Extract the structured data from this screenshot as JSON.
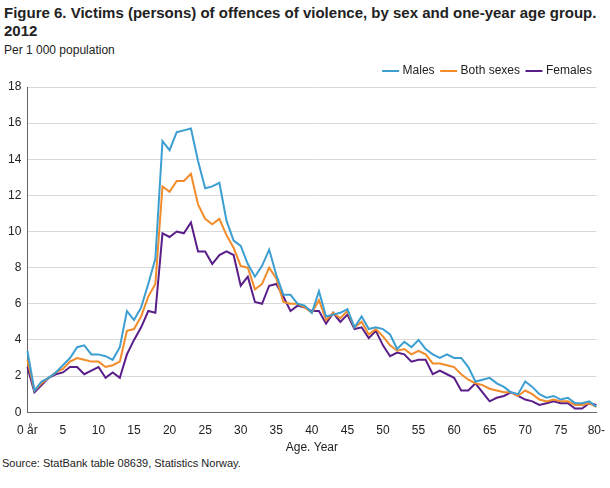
{
  "chart_data": {
    "type": "line",
    "title": "Figure 6. Victims (persons) of offences of violence, by sex and one-year age group. 2012",
    "subtitle": "Per 1 000 population",
    "x_label": "Age. Year",
    "source": "Source: StatBank table 08639, Statistics Norway.",
    "categories": [
      "0 år",
      null,
      null,
      null,
      null,
      "5",
      null,
      null,
      null,
      null,
      "10",
      null,
      null,
      null,
      null,
      "15",
      null,
      null,
      null,
      null,
      "20",
      null,
      null,
      null,
      null,
      "25",
      null,
      null,
      null,
      null,
      "30",
      null,
      null,
      null,
      null,
      "35",
      null,
      null,
      null,
      null,
      "40",
      null,
      null,
      null,
      null,
      "45",
      null,
      null,
      null,
      null,
      "50",
      null,
      null,
      null,
      null,
      "55",
      null,
      null,
      null,
      null,
      "60",
      null,
      null,
      null,
      null,
      "65",
      null,
      null,
      null,
      null,
      "70",
      null,
      null,
      null,
      null,
      "75",
      null,
      null,
      null,
      null,
      "80-"
    ],
    "series": [
      {
        "name": "Males",
        "color": "#3d9fd1",
        "values": [
          3.4,
          1.2,
          1.7,
          1.9,
          2.2,
          2.6,
          3.0,
          3.6,
          3.7,
          3.2,
          3.2,
          3.1,
          2.9,
          3.6,
          5.6,
          5.1,
          5.8,
          7.1,
          8.5,
          15.0,
          14.5,
          15.5,
          15.6,
          15.7,
          13.9,
          12.4,
          12.5,
          12.7,
          10.6,
          9.5,
          9.2,
          8.2,
          7.5,
          8.1,
          9.0,
          7.6,
          6.5,
          6.5,
          6.0,
          5.9,
          5.5,
          6.7,
          5.3,
          5.4,
          5.5,
          5.7,
          4.7,
          5.3,
          4.6,
          4.7,
          4.6,
          4.3,
          3.5,
          3.9,
          3.6,
          4.0,
          3.5,
          3.2,
          3.0,
          3.2,
          3.0,
          3.0,
          2.5,
          1.7,
          1.8,
          1.9,
          1.6,
          1.4,
          1.1,
          1.0,
          1.7,
          1.4,
          1.0,
          0.8,
          0.9,
          0.7,
          0.8,
          0.5,
          0.5,
          0.6,
          0.3
        ]
      },
      {
        "name": "Both sexes",
        "color": "#f28b2a",
        "values": [
          2.9,
          1.2,
          1.6,
          1.9,
          2.2,
          2.4,
          2.8,
          3.0,
          2.9,
          2.8,
          2.8,
          2.5,
          2.6,
          2.8,
          4.5,
          4.6,
          5.3,
          6.4,
          7.1,
          12.5,
          12.2,
          12.8,
          12.8,
          13.2,
          11.5,
          10.7,
          10.4,
          10.7,
          9.8,
          9.1,
          8.1,
          8.0,
          6.8,
          7.1,
          8.0,
          7.4,
          6.1,
          6.0,
          6.0,
          5.8,
          5.5,
          6.2,
          5.1,
          5.5,
          5.2,
          5.6,
          4.7,
          5.0,
          4.3,
          4.6,
          4.2,
          3.7,
          3.4,
          3.5,
          3.2,
          3.4,
          3.2,
          2.7,
          2.7,
          2.6,
          2.5,
          2.1,
          1.8,
          1.6,
          1.5,
          1.3,
          1.2,
          1.1,
          1.1,
          0.9,
          1.2,
          1.0,
          0.7,
          0.6,
          0.7,
          0.6,
          0.6,
          0.4,
          0.4,
          0.5,
          0.3
        ]
      },
      {
        "name": "Females",
        "color": "#5a1e8a",
        "values": [
          2.5,
          1.1,
          1.5,
          1.9,
          2.1,
          2.2,
          2.5,
          2.5,
          2.1,
          2.3,
          2.5,
          1.9,
          2.2,
          1.9,
          3.2,
          4.0,
          4.7,
          5.6,
          5.5,
          9.9,
          9.7,
          10.0,
          9.9,
          10.5,
          8.9,
          8.9,
          8.2,
          8.7,
          8.9,
          8.7,
          7.0,
          7.5,
          6.1,
          6.0,
          7.0,
          7.1,
          6.4,
          5.6,
          5.9,
          5.8,
          5.6,
          5.6,
          4.9,
          5.5,
          5.0,
          5.4,
          4.6,
          4.7,
          4.1,
          4.5,
          3.7,
          3.1,
          3.3,
          3.2,
          2.8,
          2.9,
          2.9,
          2.1,
          2.3,
          2.1,
          1.9,
          1.2,
          1.2,
          1.6,
          1.1,
          0.6,
          0.8,
          0.9,
          1.1,
          0.9,
          0.7,
          0.6,
          0.4,
          0.5,
          0.6,
          0.5,
          0.5,
          0.2,
          0.2,
          0.5,
          0.4
        ]
      }
    ],
    "ylim": [
      0,
      18
    ],
    "yticks": [
      0,
      2,
      4,
      6,
      8,
      10,
      12,
      14,
      16,
      18
    ],
    "grid": true,
    "legend": "upper right"
  }
}
